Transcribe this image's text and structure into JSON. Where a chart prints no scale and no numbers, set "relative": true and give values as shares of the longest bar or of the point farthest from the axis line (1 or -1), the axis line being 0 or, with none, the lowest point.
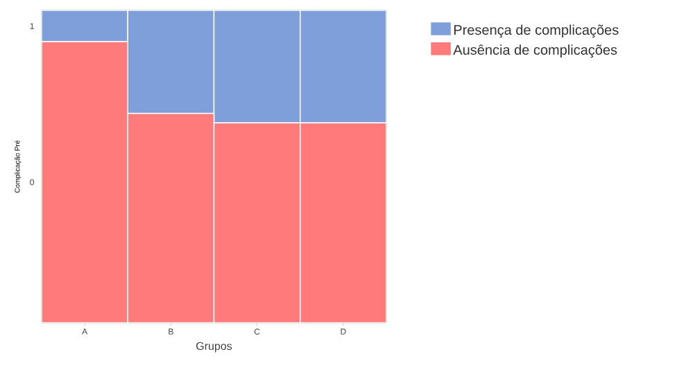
{
  "chart_data": {
    "type": "bar",
    "stacked": true,
    "relative": true,
    "xlabel": "Grupos",
    "ylabel": "Complicação Pré",
    "categories": [
      "A",
      "B",
      "C",
      "D"
    ],
    "series": [
      {
        "name": "Ausência de complicações",
        "color": "#ff7b7b",
        "values": [
          0.9,
          0.67,
          0.64,
          0.64
        ]
      },
      {
        "name": "Presença de complicações",
        "color": "#7f9fdb",
        "values": [
          0.1,
          0.33,
          0.36,
          0.36
        ]
      }
    ],
    "annotations": [
      "0",
      "1"
    ],
    "legend": "top right"
  }
}
